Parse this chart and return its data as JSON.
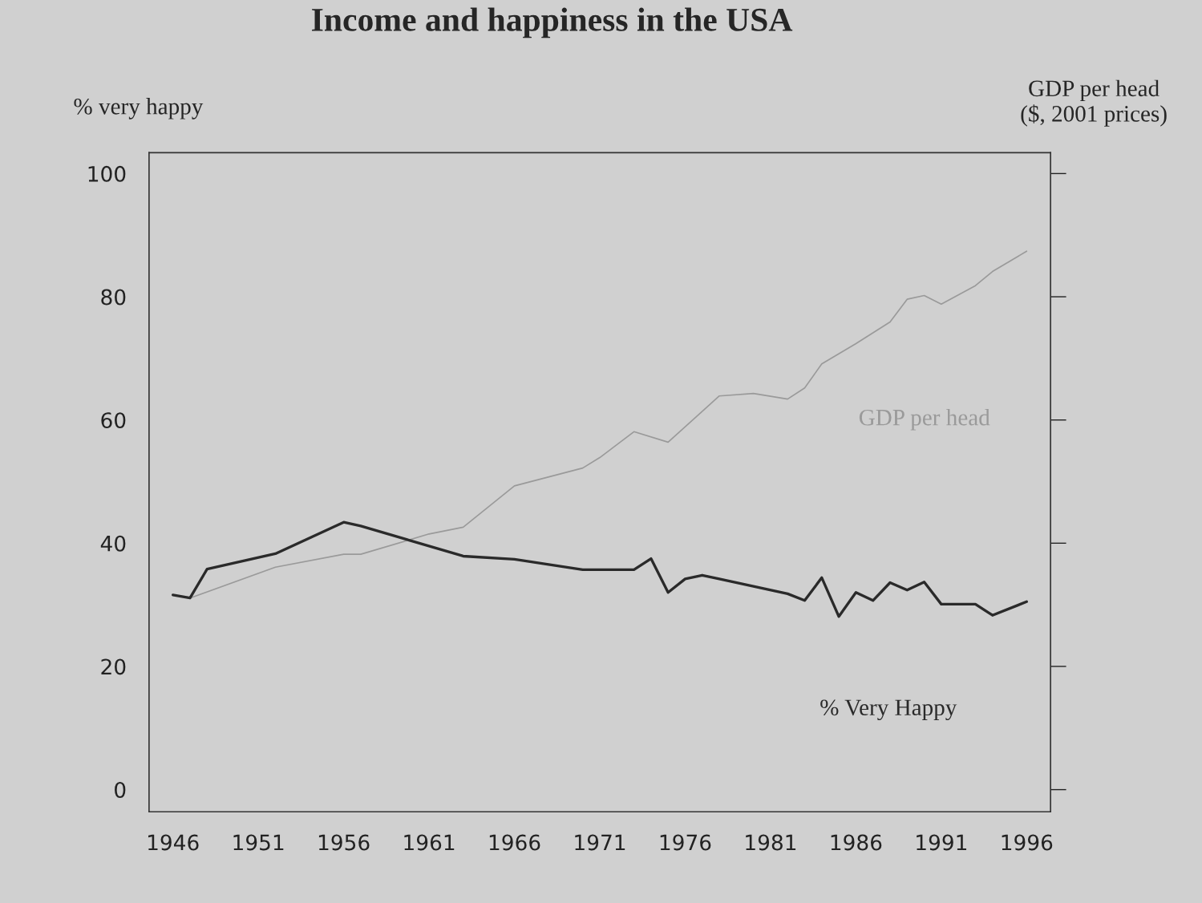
{
  "chart_data": {
    "type": "line",
    "title": "Income and happiness in the USA",
    "ylabel": "% very happy",
    "y2label": "GDP per head\n($, 2001 prices)",
    "xlim": [
      1944.6,
      1997.4
    ],
    "xticks": [
      1946,
      1951,
      1956,
      1961,
      1966,
      1971,
      1976,
      1981,
      1986,
      1991,
      1996
    ],
    "ylim": [
      -3.6,
      103.4
    ],
    "yticks": [
      0,
      20,
      40,
      60,
      80,
      100
    ],
    "marker": "none",
    "series": [
      {
        "name": "GDP per head",
        "color": "#9a9a9a",
        "x": [
          1947,
          1952,
          1956,
          1957,
          1961,
          1963,
          1966,
          1970,
          1971,
          1973,
          1975,
          1978,
          1980,
          1982,
          1983,
          1984,
          1986,
          1988,
          1989,
          1990,
          1991,
          1993,
          1994,
          1996
        ],
        "values": [
          31.1,
          36.1,
          38.2,
          38.2,
          41.5,
          42.6,
          49.3,
          52.2,
          53.9,
          58.1,
          56.4,
          63.9,
          64.3,
          63.4,
          65.2,
          69.1,
          72.4,
          75.9,
          79.6,
          80.2,
          78.8,
          81.8,
          84.1,
          87.4
        ]
      },
      {
        "name": "% Very Happy",
        "color": "#2a2a2a",
        "x": [
          1946,
          1947,
          1948,
          1952,
          1956,
          1957,
          1963,
          1966,
          1970,
          1973,
          1974,
          1975,
          1976,
          1977,
          1978,
          1982,
          1983,
          1984,
          1985,
          1986,
          1987,
          1988,
          1989,
          1990,
          1991,
          1993,
          1994,
          1996
        ],
        "values": [
          31.6,
          31.1,
          35.8,
          38.3,
          43.4,
          42.8,
          37.9,
          37.4,
          35.7,
          35.7,
          37.5,
          32.0,
          34.2,
          34.8,
          34.2,
          31.8,
          30.7,
          34.4,
          28.1,
          32.0,
          30.7,
          33.6,
          32.4,
          33.7,
          30.1,
          30.1,
          28.3,
          30.5
        ]
      }
    ]
  }
}
